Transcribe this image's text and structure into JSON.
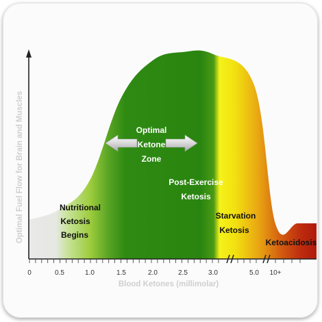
{
  "chart_data": {
    "type": "area",
    "ylabel": "Optimal Fuel Flow for Brain and Muscles",
    "xlabel": "Blood Ketones (millimolar)",
    "x_ticks": [
      "0",
      "0.5",
      "1.0",
      "1.5",
      "2.0",
      "2.5",
      "3.0",
      "5.0",
      "10+"
    ],
    "axis_breaks": [
      "3.0-5.0",
      "5.0-10+"
    ],
    "zones": [
      {
        "name": "Nutritional Ketosis Begins",
        "lines": [
          "Nutritional",
          "Ketosis",
          "Begins"
        ],
        "start": 0.5,
        "color": "#9ccc3c"
      },
      {
        "name": "Optimal Ketone Zone",
        "lines": [
          "Optimal",
          "Ketone",
          "Zone"
        ],
        "start": 1.5,
        "end": 3.0,
        "color": "#2e8a12"
      },
      {
        "name": "Post-Exercise Ketosis",
        "lines": [
          "Post-Exercise",
          "Ketosis"
        ],
        "color": "#2e8a12"
      },
      {
        "name": "Starvation Ketosis",
        "lines": [
          "Starvation",
          "Ketosis"
        ],
        "start": 3.0,
        "color": "#f2ee10"
      },
      {
        "name": "Ketoacidosis",
        "lines": [
          "Ketoacidosis"
        ],
        "color": "#b81c0e"
      }
    ],
    "curve": {
      "description_points": [
        {
          "x": "0",
          "level": 0.19
        },
        {
          "x": "0.5",
          "level": 0.24
        },
        {
          "x": "1.0",
          "level": 0.38
        },
        {
          "x": "1.5",
          "level": 0.78
        },
        {
          "x": "2.0",
          "level": 0.96
        },
        {
          "x": "2.5",
          "level": 1.0
        },
        {
          "x": "3.0",
          "level": 0.99
        },
        {
          "x": "5.0",
          "level": 0.84
        },
        {
          "x": "10+",
          "level": 0.17
        }
      ]
    },
    "arrow": "double-headed arrow spanning Optimal Ketone Zone",
    "grid": false,
    "legend": "none"
  }
}
